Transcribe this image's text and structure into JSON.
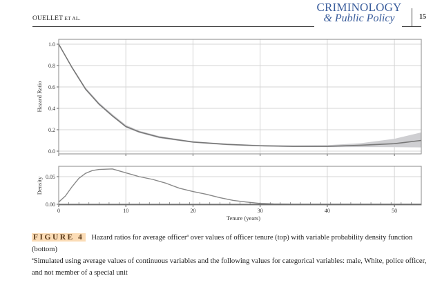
{
  "header": {
    "running_head_main": "OUELLET",
    "running_head_small": " ET AL.",
    "journal_line1": "CRIMINOLOGY",
    "journal_line2": "& Public Policy",
    "page_number": "15",
    "journal_color": "#3a5d9c"
  },
  "caption": {
    "label": "FIGURE 4",
    "text_before_sup": "Hazard ratios for average officer",
    "sup": "a",
    "text_after_sup": " over values of officer tenure (top) with variable probability density function (bottom)",
    "footnote_sup": "a",
    "footnote": "Simulated using average values of continuous variables and the following values for categorical variables: male, White, police officer, and not member of a special unit",
    "label_highlight_color": "#fbdcb6"
  },
  "chart_data": [
    {
      "type": "line",
      "ylabel": "Hazard Ratio",
      "xlabel": "",
      "xlim": [
        0,
        54
      ],
      "ylim": [
        -0.02,
        1.05
      ],
      "yticks": [
        "0.0",
        "0.2",
        "0.4",
        "0.6",
        "0.8",
        "1.0"
      ],
      "xgrid": [
        10,
        20,
        30,
        40,
        50
      ],
      "grid": true,
      "line_color": "#777777",
      "band_color": "#cfcfd2",
      "x": [
        0,
        2,
        4,
        6,
        8,
        10,
        12,
        15,
        20,
        25,
        30,
        35,
        40,
        45,
        50,
        54
      ],
      "y": [
        1.0,
        0.78,
        0.58,
        0.44,
        0.33,
        0.23,
        0.18,
        0.13,
        0.085,
        0.063,
        0.05,
        0.045,
        0.045,
        0.055,
        0.07,
        0.1
      ],
      "ci_lower": [
        1.0,
        0.77,
        0.57,
        0.43,
        0.32,
        0.22,
        0.17,
        0.12,
        0.078,
        0.056,
        0.044,
        0.039,
        0.037,
        0.038,
        0.037,
        0.035
      ],
      "ci_upper": [
        1.0,
        0.79,
        0.595,
        0.455,
        0.345,
        0.245,
        0.19,
        0.14,
        0.092,
        0.07,
        0.057,
        0.053,
        0.056,
        0.074,
        0.115,
        0.175
      ]
    },
    {
      "type": "line",
      "ylabel": "Density",
      "xlabel": "Tenure (years)",
      "xlim": [
        0,
        54
      ],
      "ylim": [
        0,
        0.068
      ],
      "yticks": [
        "0.00",
        "0.05"
      ],
      "xticks": [
        "0",
        "10",
        "20",
        "30",
        "40",
        "50"
      ],
      "grid": true,
      "line_color": "#888888",
      "x": [
        0,
        1,
        2,
        3,
        4,
        5,
        6,
        8,
        10,
        12,
        14,
        16,
        18,
        20,
        22,
        24,
        26,
        28,
        30,
        32,
        35,
        40,
        54
      ],
      "y": [
        0.004,
        0.015,
        0.032,
        0.047,
        0.056,
        0.061,
        0.063,
        0.064,
        0.057,
        0.05,
        0.045,
        0.038,
        0.029,
        0.023,
        0.018,
        0.012,
        0.007,
        0.004,
        0.0015,
        0.0005,
        0.0001,
        0,
        0
      ]
    }
  ]
}
